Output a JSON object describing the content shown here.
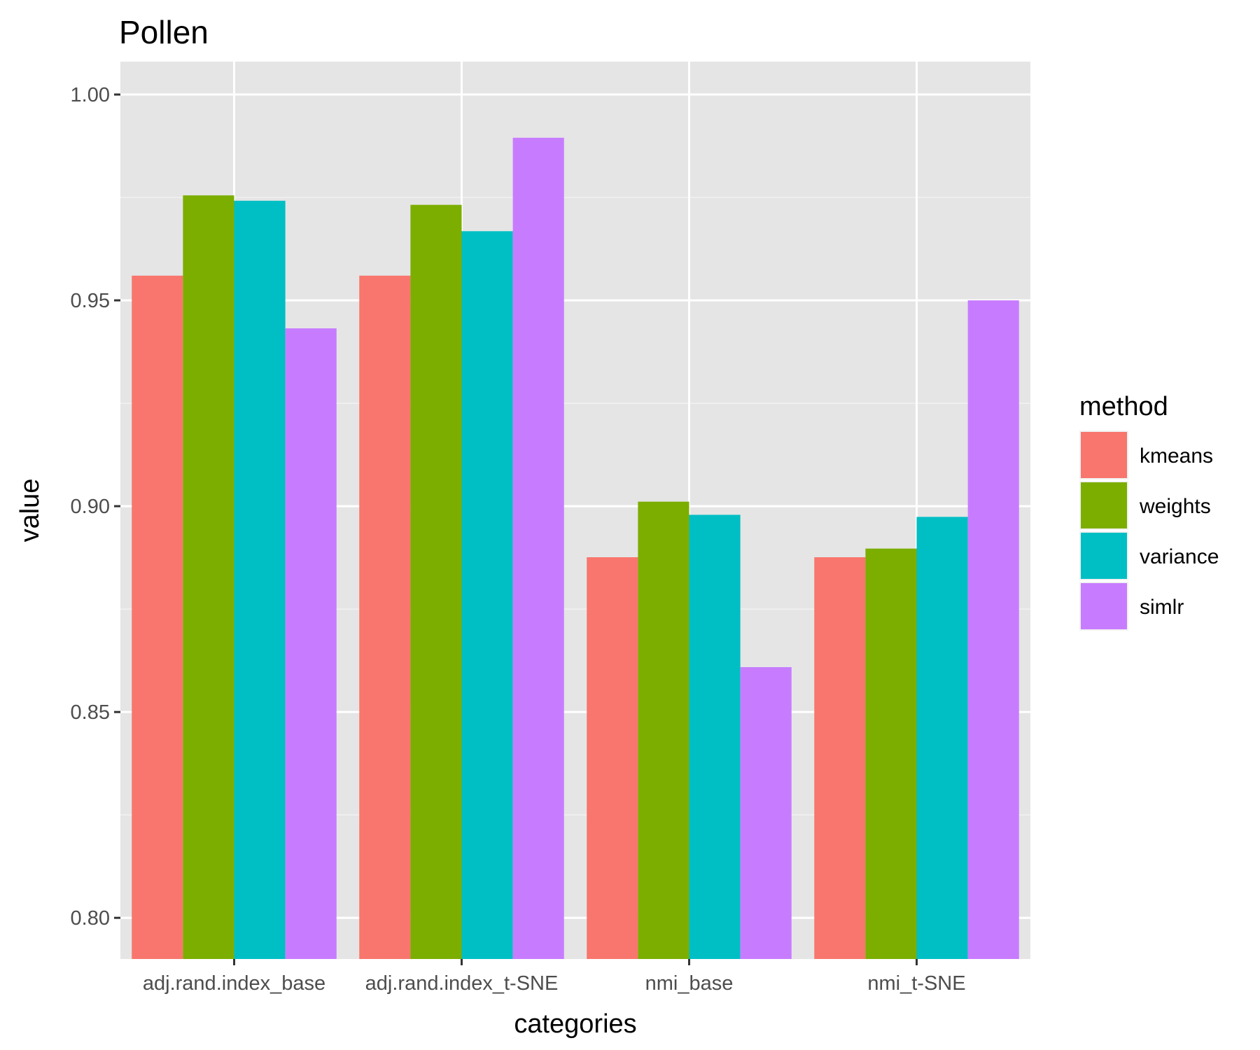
{
  "chart_data": {
    "type": "bar",
    "title": "Pollen",
    "xlabel": "categories",
    "ylabel": "value",
    "categories": [
      "adj.rand.index_base",
      "adj.rand.index_t-SNE",
      "nmi_base",
      "nmi_t-SNE"
    ],
    "ylim": [
      0.79,
      1.008
    ],
    "yticks": [
      "0.80",
      "0.85",
      "0.90",
      "0.95",
      "1.00"
    ],
    "grid": true,
    "legend": {
      "title": "method",
      "placement": "right"
    },
    "series": [
      {
        "name": "kmeans",
        "color": "#F8766D",
        "values": [
          0.956,
          0.956,
          0.8876,
          0.8876
        ]
      },
      {
        "name": "weights",
        "color": "#7CAE00",
        "values": [
          0.9755,
          0.9732,
          0.9011,
          0.8897
        ]
      },
      {
        "name": "variance",
        "color": "#00BFC4",
        "values": [
          0.9742,
          0.9668,
          0.8979,
          0.8974
        ]
      },
      {
        "name": "simlr",
        "color": "#C77CFF",
        "values": [
          0.9432,
          0.9895,
          0.8609,
          0.95
        ]
      }
    ]
  }
}
